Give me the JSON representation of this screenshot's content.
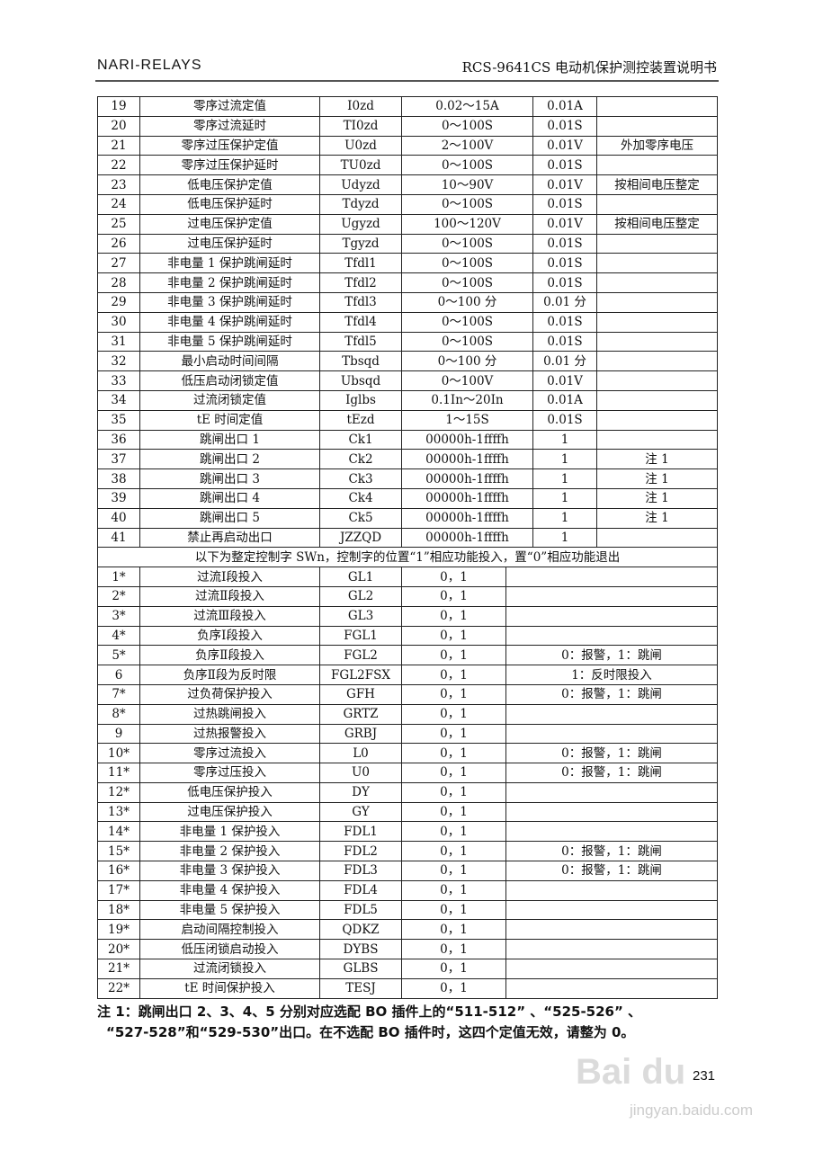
{
  "header": {
    "left": "NARI-RELAYS",
    "right": "RCS-9641CS 电动机保护测控装置说明书"
  },
  "rows": [
    [
      "19",
      "零序过流定值",
      "I0zd",
      "0.02～15A",
      "0.01A",
      ""
    ],
    [
      "20",
      "零序过流延时",
      "TI0zd",
      "0～100S",
      "0.01S",
      ""
    ],
    [
      "21",
      "零序过压保护定值",
      "U0zd",
      "2～100V",
      "0.01V",
      "外加零序电压"
    ],
    [
      "22",
      "零序过压保护延时",
      "TU0zd",
      "0～100S",
      "0.01S",
      ""
    ],
    [
      "23",
      "低电压保护定值",
      "Udyzd",
      "10～90V",
      "0.01V",
      "按相间电压整定"
    ],
    [
      "24",
      "低电压保护延时",
      "Tdyzd",
      "0～100S",
      "0.01S",
      ""
    ],
    [
      "25",
      "过电压保护定值",
      "Ugyzd",
      "100～120V",
      "0.01V",
      "按相间电压整定"
    ],
    [
      "26",
      "过电压保护延时",
      "Tgyzd",
      "0～100S",
      "0.01S",
      ""
    ],
    [
      "27",
      "非电量 1 保护跳闸延时",
      "Tfdl1",
      "0～100S",
      "0.01S",
      ""
    ],
    [
      "28",
      "非电量 2 保护跳闸延时",
      "Tfdl2",
      "0～100S",
      "0.01S",
      ""
    ],
    [
      "29",
      "非电量 3 保护跳闸延时",
      "Tfdl3",
      "0～100 分",
      "0.01 分",
      ""
    ],
    [
      "30",
      "非电量 4 保护跳闸延时",
      "Tfdl4",
      "0～100S",
      "0.01S",
      ""
    ],
    [
      "31",
      "非电量 5 保护跳闸延时",
      "Tfdl5",
      "0～100S",
      "0.01S",
      ""
    ],
    [
      "32",
      "最小启动时间间隔",
      "Tbsqd",
      "0～100 分",
      "0.01 分",
      ""
    ],
    [
      "33",
      "低压启动闭锁定值",
      "Ubsqd",
      "0～100V",
      "0.01V",
      ""
    ],
    [
      "34",
      "过流闭锁定值",
      "Iglbs",
      "0.1In～20In",
      "0.01A",
      ""
    ],
    [
      "35",
      "tE 时间定值",
      "tEzd",
      "1～15S",
      "0.01S",
      ""
    ],
    [
      "36",
      "跳闸出口 1",
      "Ck1",
      "00000h-1ffffh",
      "1",
      ""
    ],
    [
      "37",
      "跳闸出口 2",
      "Ck2",
      "00000h-1ffffh",
      "1",
      "注 1"
    ],
    [
      "38",
      "跳闸出口 3",
      "Ck3",
      "00000h-1ffffh",
      "1",
      "注 1"
    ],
    [
      "39",
      "跳闸出口 4",
      "Ck4",
      "00000h-1ffffh",
      "1",
      "注 1"
    ],
    [
      "40",
      "跳闸出口 5",
      "Ck5",
      "00000h-1ffffh",
      "1",
      "注 1"
    ],
    [
      "41",
      "禁止再启动出口",
      "JZZQD",
      "00000h-1ffffh",
      "1",
      ""
    ]
  ],
  "section_header": "以下为整定控制字 SWn，控制字的位置“1”相应功能投入，置“0”相应功能退出",
  "sw_rows": [
    [
      "1*",
      "过流Ⅰ段投入",
      "GL1",
      "0，1",
      ""
    ],
    [
      "2*",
      "过流Ⅱ段投入",
      "GL2",
      "0，1",
      ""
    ],
    [
      "3*",
      "过流Ⅲ段投入",
      "GL3",
      "0，1",
      ""
    ],
    [
      "4*",
      "负序Ⅰ段投入",
      "FGL1",
      "0，1",
      ""
    ],
    [
      "5*",
      "负序Ⅱ段投入",
      "FGL2",
      "0，1",
      "0：报警，1：跳闸"
    ],
    [
      "6",
      "负序Ⅱ段为反时限",
      "FGL2FSX",
      "0，1",
      "1：反时限投入"
    ],
    [
      "7*",
      "过负荷保护投入",
      "GFH",
      "0，1",
      "0：报警，1：跳闸"
    ],
    [
      "8*",
      "过热跳闸投入",
      "GRTZ",
      "0，1",
      ""
    ],
    [
      "9",
      "过热报警投入",
      "GRBJ",
      "0，1",
      ""
    ],
    [
      "10*",
      "零序过流投入",
      "L0",
      "0，1",
      "0：报警，1：跳闸"
    ],
    [
      "11*",
      "零序过压投入",
      "U0",
      "0，1",
      "0：报警，1：跳闸"
    ],
    [
      "12*",
      "低电压保护投入",
      "DY",
      "0，1",
      ""
    ],
    [
      "13*",
      "过电压保护投入",
      "GY",
      "0，1",
      ""
    ],
    [
      "14*",
      "非电量 1 保护投入",
      "FDL1",
      "0，1",
      ""
    ],
    [
      "15*",
      "非电量 2 保护投入",
      "FDL2",
      "0，1",
      "0：报警，1：跳闸"
    ],
    [
      "16*",
      "非电量 3 保护投入",
      "FDL3",
      "0，1",
      "0：报警，1：跳闸"
    ],
    [
      "17*",
      "非电量 4 保护投入",
      "FDL4",
      "0，1",
      ""
    ],
    [
      "18*",
      "非电量 5 保护投入",
      "FDL5",
      "0，1",
      ""
    ],
    [
      "19*",
      "启动间隔控制投入",
      "QDKZ",
      "0，1",
      ""
    ],
    [
      "20*",
      "低压闭锁启动投入",
      "DYBS",
      "0，1",
      ""
    ],
    [
      "21*",
      "过流闭锁投入",
      "GLBS",
      "0，1",
      ""
    ],
    [
      "22*",
      "tE 时间保护投入",
      "TESJ",
      "0，1",
      ""
    ]
  ],
  "notes": [
    "注 1：跳闸出口 2、3、4、5 分别对应选配 BO 插件上的“511-512” 、“525-526” 、",
    "“527-528”和“529-530”出口。在不选配 BO 插件时，这四个定值无效，请整为 0。"
  ],
  "page_number": "231",
  "watermark": {
    "logo": "Baidu 经验",
    "url": "jingyan.baidu.com"
  }
}
